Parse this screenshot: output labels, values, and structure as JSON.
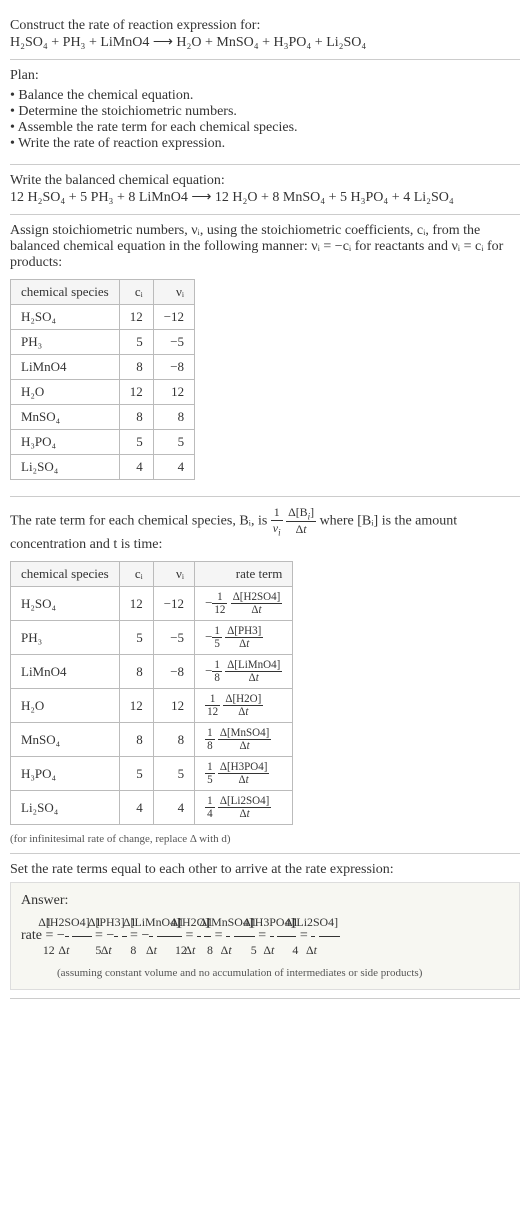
{
  "intro": {
    "prompt": "Construct the rate of reaction expression for:",
    "equation": "H₂SO₄ + PH₃ + LiMnO4 ⟶ H₂O + MnSO₄ + H₃PO₄ + Li₂SO₄"
  },
  "plan": {
    "title": "Plan:",
    "items": [
      "Balance the chemical equation.",
      "Determine the stoichiometric numbers.",
      "Assemble the rate term for each chemical species.",
      "Write the rate of reaction expression."
    ]
  },
  "balanced": {
    "title": "Write the balanced chemical equation:",
    "equation": "12 H₂SO₄ + 5 PH₃ + 8 LiMnO4 ⟶ 12 H₂O + 8 MnSO₄ + 5 H₃PO₄ + 4 Li₂SO₄"
  },
  "stoich_text": "Assign stoichiometric numbers, νᵢ, using the stoichiometric coefficients, cᵢ, from the balanced chemical equation in the following manner: νᵢ = −cᵢ for reactants and νᵢ = cᵢ for products:",
  "stoich_table": {
    "headers": [
      "chemical species",
      "cᵢ",
      "νᵢ"
    ],
    "rows": [
      {
        "sp": "H₂SO₄",
        "c": "12",
        "v": "−12"
      },
      {
        "sp": "PH₃",
        "c": "5",
        "v": "−5"
      },
      {
        "sp": "LiMnO4",
        "c": "8",
        "v": "−8"
      },
      {
        "sp": "H₂O",
        "c": "12",
        "v": "12"
      },
      {
        "sp": "MnSO₄",
        "c": "8",
        "v": "8"
      },
      {
        "sp": "H₃PO₄",
        "c": "5",
        "v": "5"
      },
      {
        "sp": "Li₂SO₄",
        "c": "4",
        "v": "4"
      }
    ]
  },
  "rate_term_text_pre": "The rate term for each chemical species, Bᵢ, is ",
  "rate_term_text_post": " where [Bᵢ] is the amount concentration and t is time:",
  "rate_table": {
    "headers": [
      "chemical species",
      "cᵢ",
      "νᵢ",
      "rate term"
    ],
    "rows": [
      {
        "sp": "H₂SO₄",
        "c": "12",
        "v": "−12",
        "neg": "−",
        "coef": "12",
        "conc": "Δ[H2SO4]"
      },
      {
        "sp": "PH₃",
        "c": "5",
        "v": "−5",
        "neg": "−",
        "coef": "5",
        "conc": "Δ[PH3]"
      },
      {
        "sp": "LiMnO4",
        "c": "8",
        "v": "−8",
        "neg": "−",
        "coef": "8",
        "conc": "Δ[LiMnO4]"
      },
      {
        "sp": "H₂O",
        "c": "12",
        "v": "12",
        "neg": "",
        "coef": "12",
        "conc": "Δ[H2O]"
      },
      {
        "sp": "MnSO₄",
        "c": "8",
        "v": "8",
        "neg": "",
        "coef": "8",
        "conc": "Δ[MnSO4]"
      },
      {
        "sp": "H₃PO₄",
        "c": "5",
        "v": "5",
        "neg": "",
        "coef": "5",
        "conc": "Δ[H3PO4]"
      },
      {
        "sp": "Li₂SO₄",
        "c": "4",
        "v": "4",
        "neg": "",
        "coef": "4",
        "conc": "Δ[Li2SO4]"
      }
    ]
  },
  "infinitesimal_note": "(for infinitesimal rate of change, replace Δ with d)",
  "final_title": "Set the rate terms equal to each other to arrive at the rate expression:",
  "answer": {
    "label": "Answer:",
    "note": "(assuming constant volume and no accumulation of intermediates or side products)",
    "terms": [
      {
        "pre": "rate = −",
        "coef": "12",
        "conc": "Δ[H2SO4]"
      },
      {
        "pre": " = −",
        "coef": "5",
        "conc": "Δ[PH3]"
      },
      {
        "pre": " = −",
        "coef": "8",
        "conc": "Δ[LiMnO4]"
      },
      {
        "pre": " = ",
        "coef": "12",
        "conc": "Δ[H2O]"
      },
      {
        "pre": " = ",
        "coef": "8",
        "conc": "Δ[MnSO4]"
      },
      {
        "pre": " = ",
        "coef": "5",
        "conc": "Δ[H3PO4]"
      },
      {
        "pre": " = ",
        "coef": "4",
        "conc": "Δ[Li2SO4]"
      }
    ]
  }
}
